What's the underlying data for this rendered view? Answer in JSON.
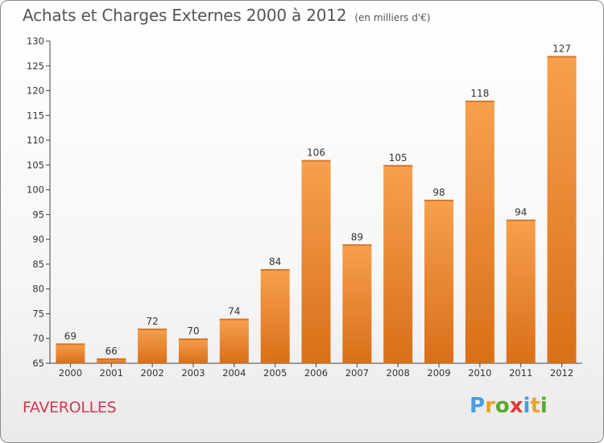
{
  "title": "Achats et Charges Externes 2000 à 2012",
  "unit": "(en milliers d'€)",
  "town": "FAVEROLLES",
  "logo": {
    "letters": [
      "P",
      "r",
      "o",
      "x",
      "i",
      "t",
      "i"
    ],
    "colors": [
      "#4a9de0",
      "#e8a42a",
      "#5aa832",
      "#e23a3a",
      "#4a9de0",
      "#e8a42a",
      "#5aa832"
    ]
  },
  "colors": {
    "bar_light": "#f7a04e",
    "bar_dark": "#d96f18",
    "title": "#555555",
    "town": "#d03a55"
  },
  "chart_data": {
    "type": "bar",
    "categories": [
      "2000",
      "2001",
      "2002",
      "2003",
      "2004",
      "2005",
      "2006",
      "2007",
      "2008",
      "2009",
      "2010",
      "2011",
      "2012"
    ],
    "values": [
      69,
      66,
      72,
      70,
      74,
      84,
      106,
      89,
      105,
      98,
      118,
      94,
      127
    ],
    "ylim": [
      65,
      130
    ],
    "yticks": [
      65,
      70,
      75,
      80,
      85,
      90,
      95,
      100,
      105,
      110,
      115,
      120,
      125,
      130
    ],
    "grid": false
  }
}
